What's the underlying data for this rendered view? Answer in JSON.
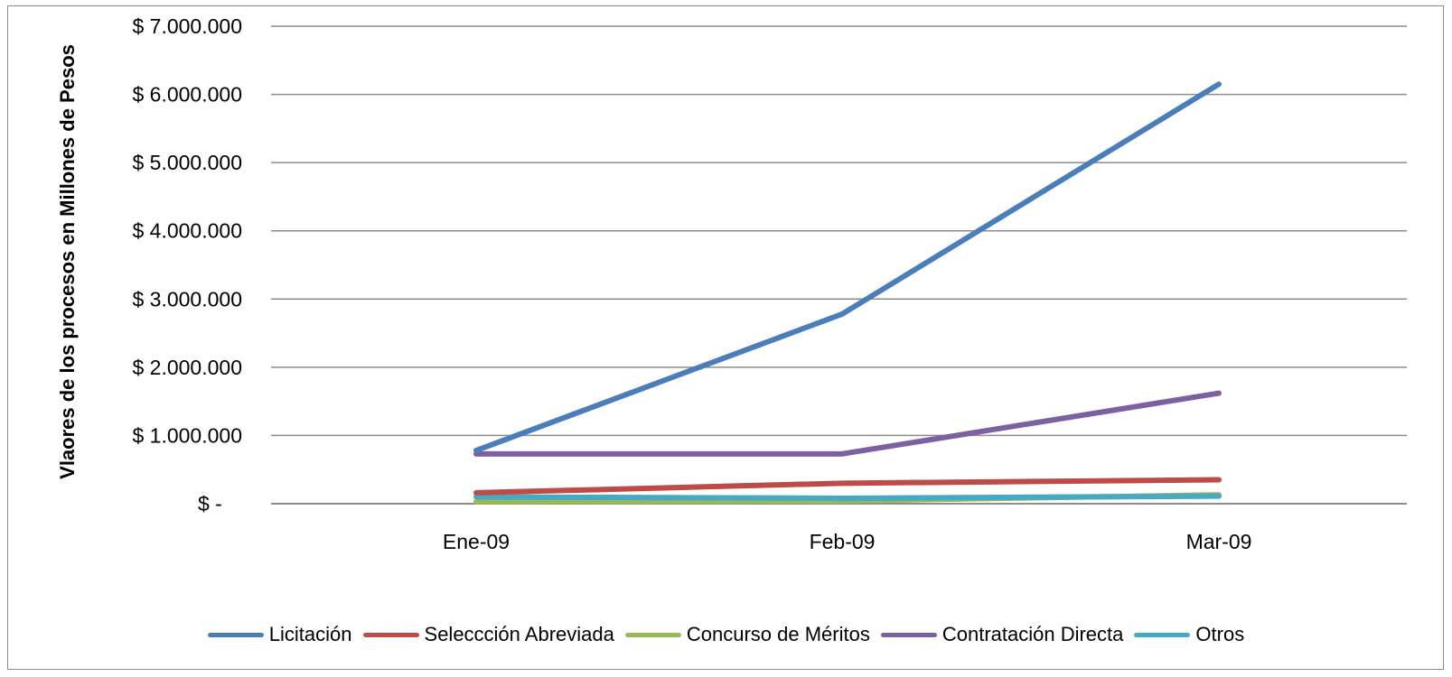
{
  "chart_data": {
    "type": "line",
    "title": "",
    "xlabel": "",
    "ylabel": "Vlaores de los procesos  en Millones de Pesos",
    "categories": [
      "Ene-09",
      "Feb-09",
      "Mar-09"
    ],
    "ylim": [
      0,
      7000000
    ],
    "yticks": [
      0,
      1000000,
      2000000,
      3000000,
      4000000,
      5000000,
      6000000,
      7000000
    ],
    "ytick_labels": [
      "$ -",
      "$ 1.000.000",
      "$ 2.000.000",
      "$ 3.000.000",
      "$ 4.000.000",
      "$ 5.000.000",
      "$ 6.000.000",
      "$ 7.000.000"
    ],
    "grid": true,
    "legend_position": "bottom",
    "series": [
      {
        "name": "Licitación",
        "color": "#4a7ebb",
        "values": [
          780000,
          2780000,
          6150000
        ]
      },
      {
        "name": "Seleccción Abreviada",
        "color": "#be4b48",
        "values": [
          160000,
          300000,
          350000
        ]
      },
      {
        "name": "Concurso de Méritos",
        "color": "#98b954",
        "values": [
          30000,
          40000,
          130000
        ]
      },
      {
        "name": "Contratación Directa",
        "color": "#7d60a0",
        "values": [
          730000,
          730000,
          1620000
        ]
      },
      {
        "name": "Otros",
        "color": "#46aac5",
        "values": [
          100000,
          80000,
          110000
        ]
      }
    ]
  }
}
